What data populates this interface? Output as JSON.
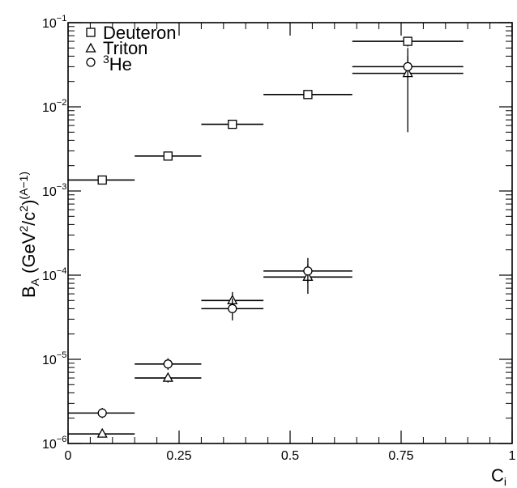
{
  "chart_data": {
    "type": "scatter",
    "xlabel": "C",
    "xlabel_sub": "i",
    "ylabel": "B",
    "ylabel_sub": "A",
    "ylabel_unit": "(GeV",
    "ylabel_unit_sup1": "2",
    "ylabel_unit_mid": "/c",
    "ylabel_unit_sup2": "2",
    "ylabel_unit_close": ")",
    "ylabel_unit_sup3": "(A−1)",
    "xlim": [
      0,
      1
    ],
    "ylim": [
      1e-06,
      0.1
    ],
    "yscale": "log",
    "grid": false,
    "legend_position": "top-left",
    "x_ticks": [
      {
        "value": 0,
        "label": "0"
      },
      {
        "value": 0.25,
        "label": "0.25"
      },
      {
        "value": 0.5,
        "label": "0.5"
      },
      {
        "value": 0.75,
        "label": "0.75"
      },
      {
        "value": 1,
        "label": "1"
      }
    ],
    "y_ticks": [
      {
        "exp": -6,
        "base": "10",
        "sup": "−6"
      },
      {
        "exp": -5,
        "base": "10",
        "sup": "−5"
      },
      {
        "exp": -4,
        "base": "10",
        "sup": "−4"
      },
      {
        "exp": -3,
        "base": "10",
        "sup": "−3"
      },
      {
        "exp": -2,
        "base": "10",
        "sup": "−2"
      },
      {
        "exp": -1,
        "base": "10",
        "sup": "−1"
      }
    ],
    "series": [
      {
        "name": "Deuteron",
        "label_prefix": "",
        "marker": "square",
        "points": [
          {
            "x": 0.077,
            "xlo": 0.0,
            "xhi": 0.15,
            "y": 0.00135,
            "ylo": 0.00128,
            "yhi": 0.00142
          },
          {
            "x": 0.225,
            "xlo": 0.15,
            "xhi": 0.3,
            "y": 0.0026,
            "ylo": 0.00248,
            "yhi": 0.00272
          },
          {
            "x": 0.37,
            "xlo": 0.3,
            "xhi": 0.44,
            "y": 0.0062,
            "ylo": 0.0056,
            "yhi": 0.0068
          },
          {
            "x": 0.54,
            "xlo": 0.44,
            "xhi": 0.64,
            "y": 0.014,
            "ylo": 0.0128,
            "yhi": 0.0152
          },
          {
            "x": 0.765,
            "xlo": 0.64,
            "xhi": 0.89,
            "y": 0.06,
            "ylo": 0.052,
            "yhi": 0.068
          }
        ]
      },
      {
        "name": "Triton",
        "label_prefix": "",
        "marker": "triangle",
        "points": [
          {
            "x": 0.077,
            "xlo": 0.0,
            "xhi": 0.15,
            "y": 1.3e-06,
            "ylo": 1.2e-06,
            "yhi": 1.4e-06
          },
          {
            "x": 0.225,
            "xlo": 0.15,
            "xhi": 0.3,
            "y": 6e-06,
            "ylo": 5.3e-06,
            "yhi": 6.7e-06
          },
          {
            "x": 0.37,
            "xlo": 0.3,
            "xhi": 0.44,
            "y": 5e-05,
            "ylo": 4e-05,
            "yhi": 6.3e-05
          },
          {
            "x": 0.54,
            "xlo": 0.44,
            "xhi": 0.64,
            "y": 9.5e-05,
            "ylo": 6e-05,
            "yhi": 0.000135
          },
          {
            "x": 0.765,
            "xlo": 0.64,
            "xhi": 0.89,
            "y": 0.025,
            "ylo": 0.005,
            "yhi": 0.05
          }
        ]
      },
      {
        "name": "He",
        "label_prefix": "3",
        "marker": "circle",
        "points": [
          {
            "x": 0.077,
            "xlo": 0.0,
            "xhi": 0.15,
            "y": 2.3e-06,
            "ylo": 2e-06,
            "yhi": 2.65e-06
          },
          {
            "x": 0.225,
            "xlo": 0.15,
            "xhi": 0.3,
            "y": 8.8e-06,
            "ylo": 7.5e-06,
            "yhi": 1.03e-05
          },
          {
            "x": 0.37,
            "xlo": 0.3,
            "xhi": 0.44,
            "y": 4e-05,
            "ylo": 2.9e-05,
            "yhi": 5.3e-05
          },
          {
            "x": 0.54,
            "xlo": 0.44,
            "xhi": 0.64,
            "y": 0.000112,
            "ylo": 8.2e-05,
            "yhi": 0.00016
          },
          {
            "x": 0.765,
            "xlo": 0.64,
            "xhi": 0.89,
            "y": 0.03,
            "ylo": 0.022,
            "yhi": 0.04
          }
        ]
      }
    ]
  }
}
